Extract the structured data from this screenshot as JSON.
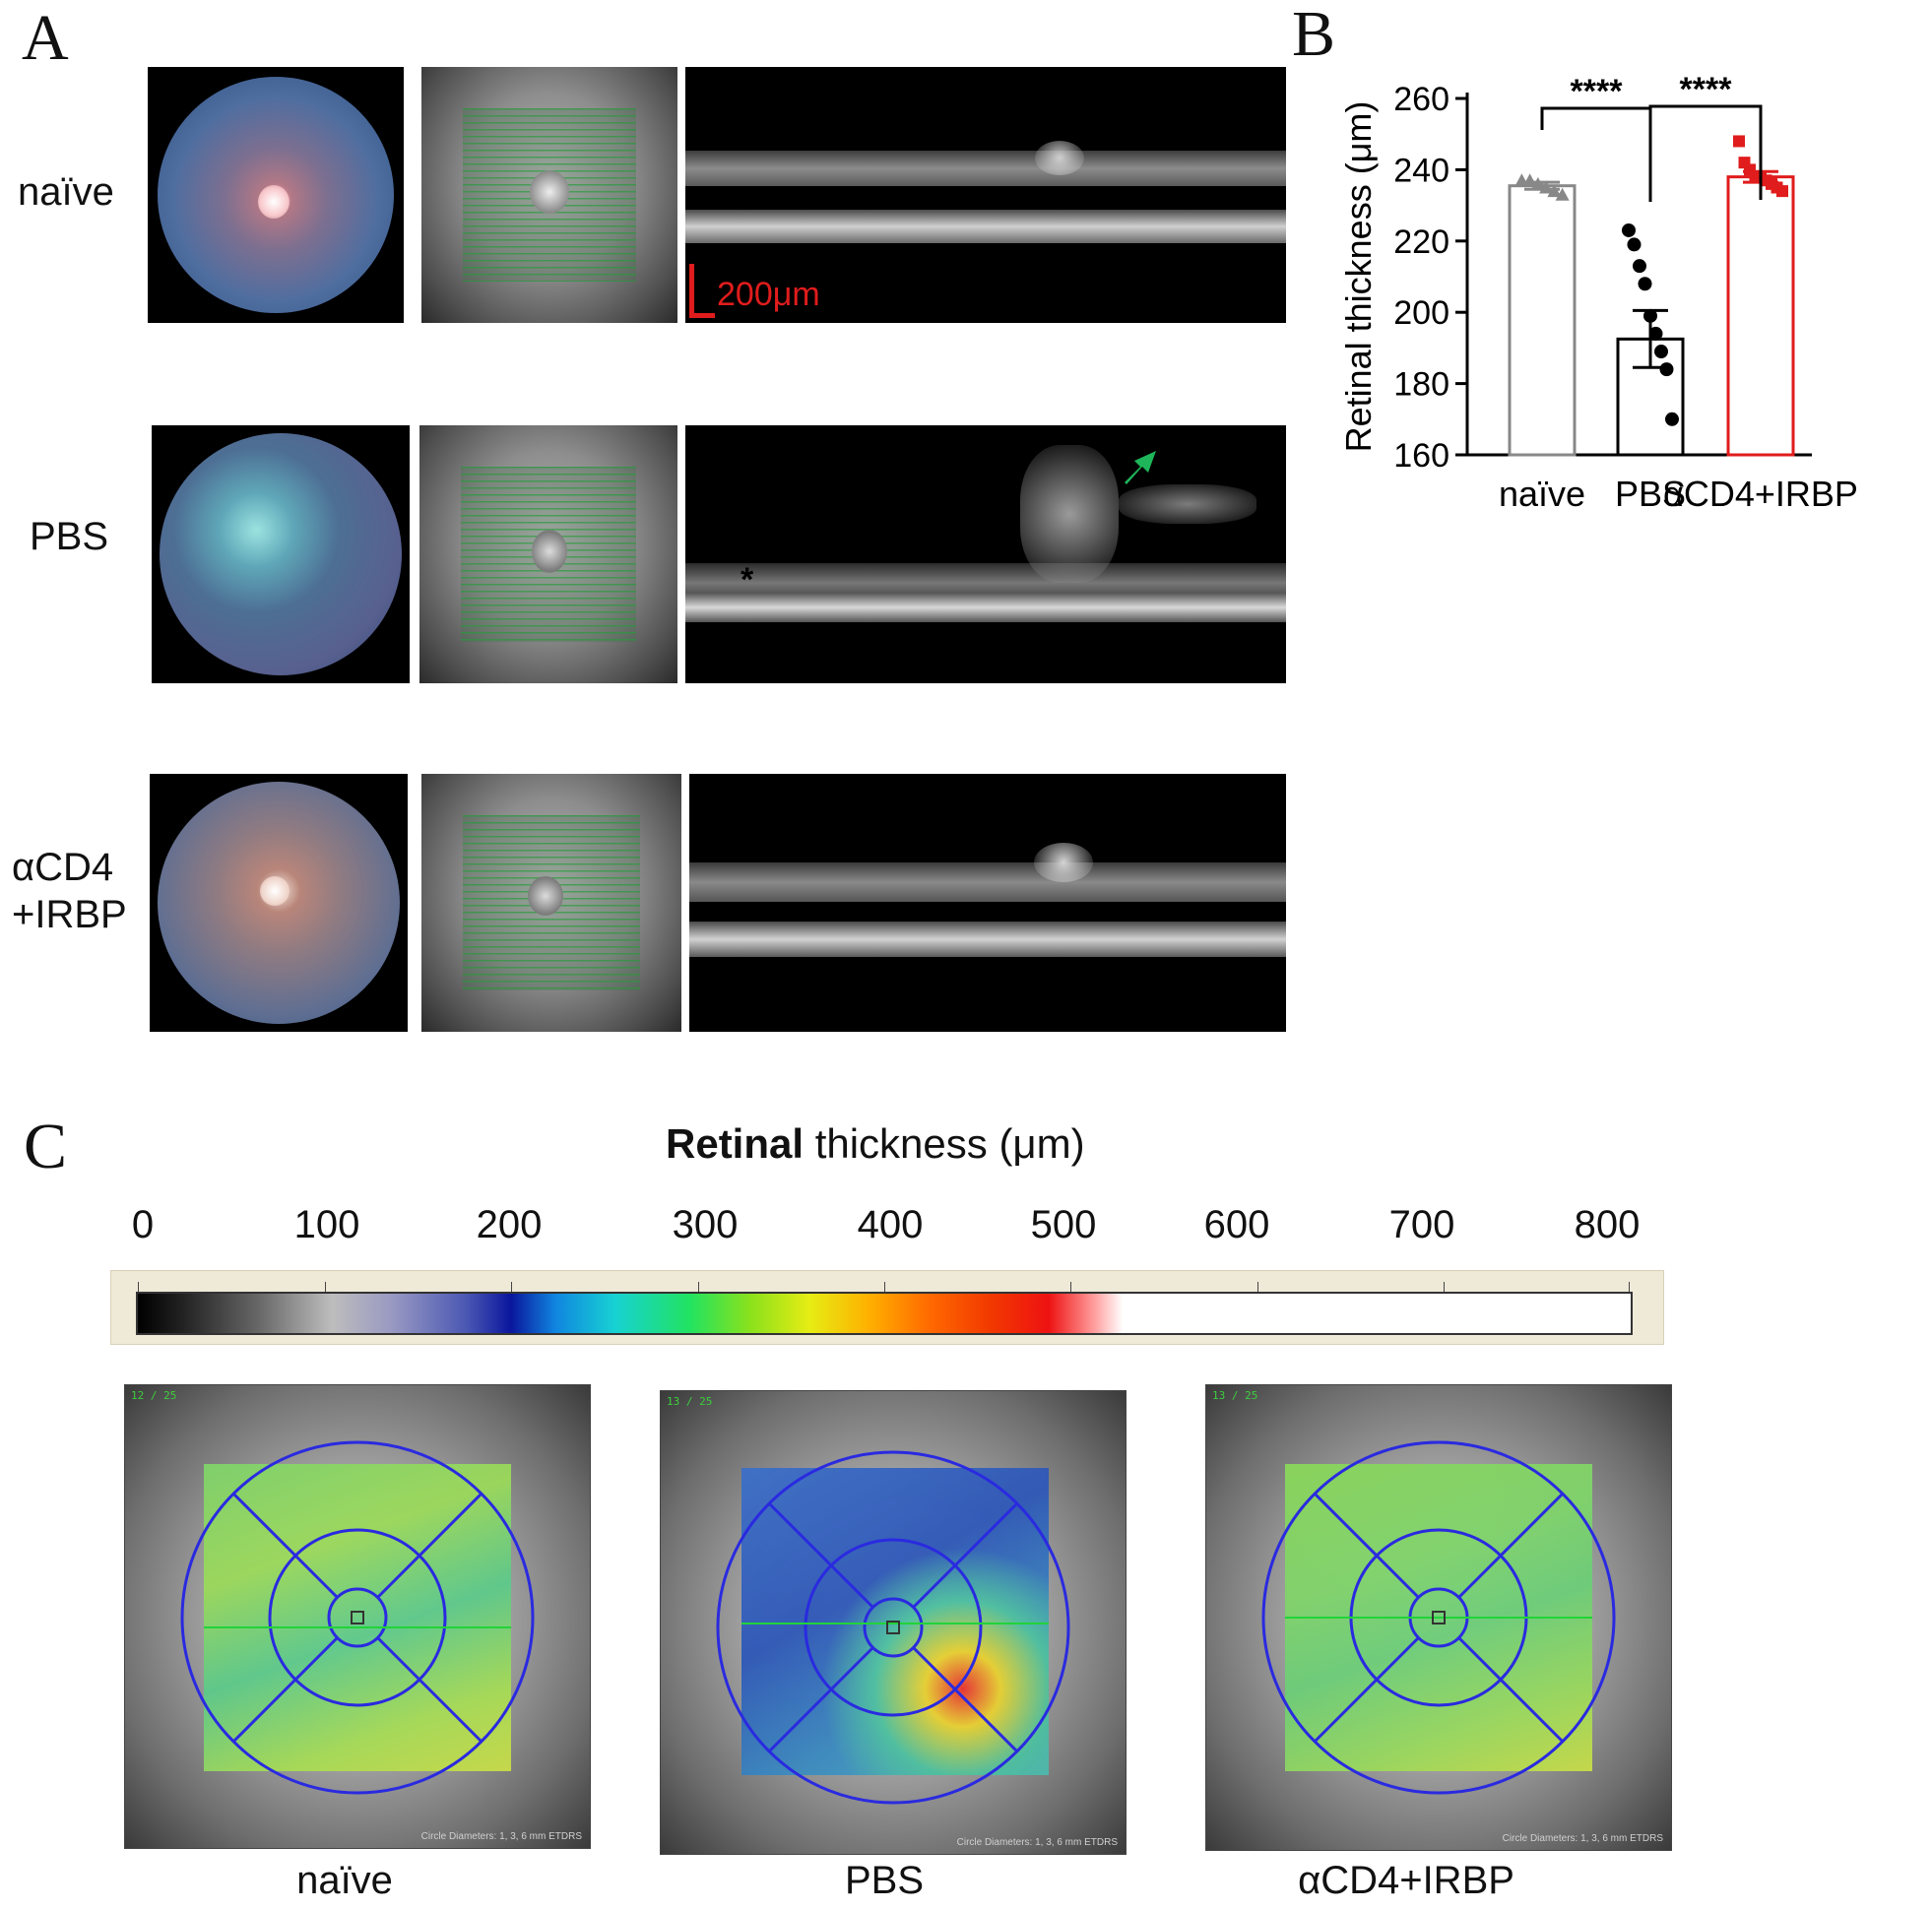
{
  "panels": {
    "a": {
      "letter": "A",
      "rows": [
        {
          "label_lines": [
            "naïve"
          ]
        },
        {
          "label_lines": [
            "PBS"
          ]
        },
        {
          "label_lines": [
            "αCD4",
            "+IRBP"
          ]
        }
      ],
      "scale_bar": "200μm",
      "asterisk": "*"
    },
    "b": {
      "letter": "B",
      "significance": [
        "****",
        "****"
      ]
    },
    "c": {
      "letter": "C",
      "colorbar_title_bold": "Retinal",
      "colorbar_title_rest": " thickness (μm)",
      "colorbar_ticks": [
        "0",
        "100",
        "200",
        "300",
        "400",
        "500",
        "600",
        "700",
        "800"
      ],
      "maps": [
        {
          "caption": "naïve",
          "tag": "12 / 25",
          "footer": "Circle Diameters: 1, 3, 6 mm ETDRS"
        },
        {
          "caption": "PBS",
          "tag": "13 / 25",
          "footer": "Circle Diameters: 1, 3, 6 mm ETDRS"
        },
        {
          "caption": "αCD4+IRBP",
          "tag": "13 / 25",
          "footer": "Circle Diameters: 1, 3, 6 mm ETDRS"
        }
      ]
    }
  },
  "chart_data": {
    "type": "bar",
    "categories": [
      "naïve",
      "PBS",
      "αCD4+IRBP"
    ],
    "values": [
      235.5,
      192.5,
      238
    ],
    "errors": [
      1,
      8,
      1.5
    ],
    "points": [
      [
        237,
        237,
        236,
        235,
        234,
        233
      ],
      [
        223,
        219,
        213,
        208,
        199,
        194,
        189,
        184,
        170
      ],
      [
        248,
        242,
        240,
        238,
        238,
        237,
        236,
        235,
        234
      ]
    ],
    "marker_shapes": [
      "triangle",
      "circle",
      "square"
    ],
    "colors": [
      "#888888",
      "#000000",
      "#e01c1c"
    ],
    "ylabel": "Retinal thickness (μm)",
    "yticks": [
      160,
      180,
      200,
      220,
      240,
      260
    ],
    "ylim": [
      160,
      260
    ],
    "grid": false
  }
}
